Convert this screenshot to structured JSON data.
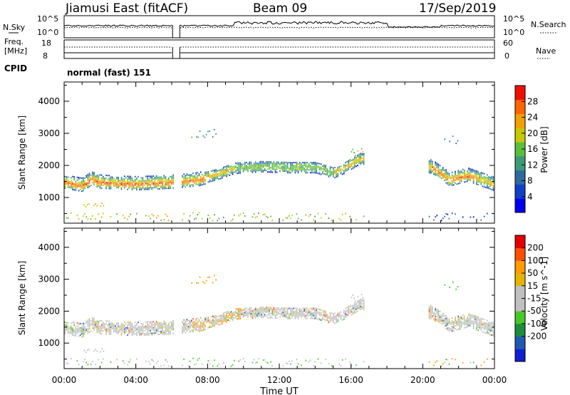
{
  "header": {
    "station": "Jiamusi East (fitACF)",
    "beam": "Beam 09",
    "date": "17/Sep/2019"
  },
  "strips": {
    "nsky": {
      "label": "N.Sky",
      "tick_hi": "10^5",
      "tick_lo": "10^0"
    },
    "nsearch": {
      "label": "N.Search",
      "tick_hi": "10^5",
      "tick_lo": "10^0"
    },
    "freq": {
      "label": "Freq.",
      "unit": "[MHz]",
      "tick_hi": "18",
      "tick_lo": "8"
    },
    "nave": {
      "label": "Nave",
      "tick_hi": "60",
      "tick_lo": "0"
    },
    "cpid": {
      "label": "CPID",
      "text": "normal (fast) 151"
    }
  },
  "colors": {
    "power_scale": [
      "#0000f0",
      "#1040c8",
      "#2e6aa0",
      "#3c9a78",
      "#5cbf3c",
      "#c8c800",
      "#f0a000",
      "#ff6400",
      "#f01000"
    ],
    "velocity_scale": [
      "#e40000",
      "#ff5000",
      "#ff9a00",
      "#e6b400",
      "#c0c0c0",
      "#c0c0c0",
      "#46c828",
      "#1e8c3c",
      "#1e5ab4",
      "#1020d0"
    ]
  },
  "chart_data": {
    "type": "heatmap",
    "x_tick_labels": [
      "00:00",
      "04:00",
      "08:00",
      "12:00",
      "16:00",
      "20:00",
      "00:00"
    ],
    "xlabel": "Time UT",
    "panels": [
      {
        "id": "power",
        "ylabel": "Slant Range [km]",
        "ylim": [
          200,
          4600
        ],
        "y_ticks": [
          "1000",
          "2000",
          "3000",
          "4000"
        ],
        "colorbar_label": "Power [dB]",
        "colorbar_ticks": [
          "28",
          "24",
          "20",
          "16",
          "12",
          "8",
          "4"
        ]
      },
      {
        "id": "velocity",
        "ylabel": "Slant Range [km]",
        "ylim": [
          200,
          4600
        ],
        "y_ticks": [
          "1000",
          "2000",
          "3000",
          "4000"
        ],
        "colorbar_label": "Velocity [m s^-1]",
        "colorbar_ticks": [
          "200",
          "100",
          "50",
          "15",
          "-15",
          "-50",
          "-100",
          "-200"
        ]
      }
    ],
    "echo_band_center_km": {
      "hours": [
        0.0,
        1.0,
        1.5,
        2.0,
        3.0,
        4.0,
        5.0,
        6.0,
        6.5,
        7.5,
        8.5,
        9.5,
        11.0,
        12.5,
        14.0,
        15.0,
        15.6,
        16.5,
        20.5,
        21.5,
        22.5,
        23.5,
        24.0
      ],
      "km": [
        1480,
        1380,
        1580,
        1480,
        1450,
        1430,
        1450,
        1480,
        1500,
        1560,
        1700,
        1900,
        1950,
        1920,
        1920,
        1750,
        1900,
        2200,
        1950,
        1550,
        1700,
        1500,
        1400
      ]
    },
    "data_gaps_hours": [
      [
        6.1,
        6.5
      ],
      [
        16.7,
        20.3
      ]
    ]
  }
}
